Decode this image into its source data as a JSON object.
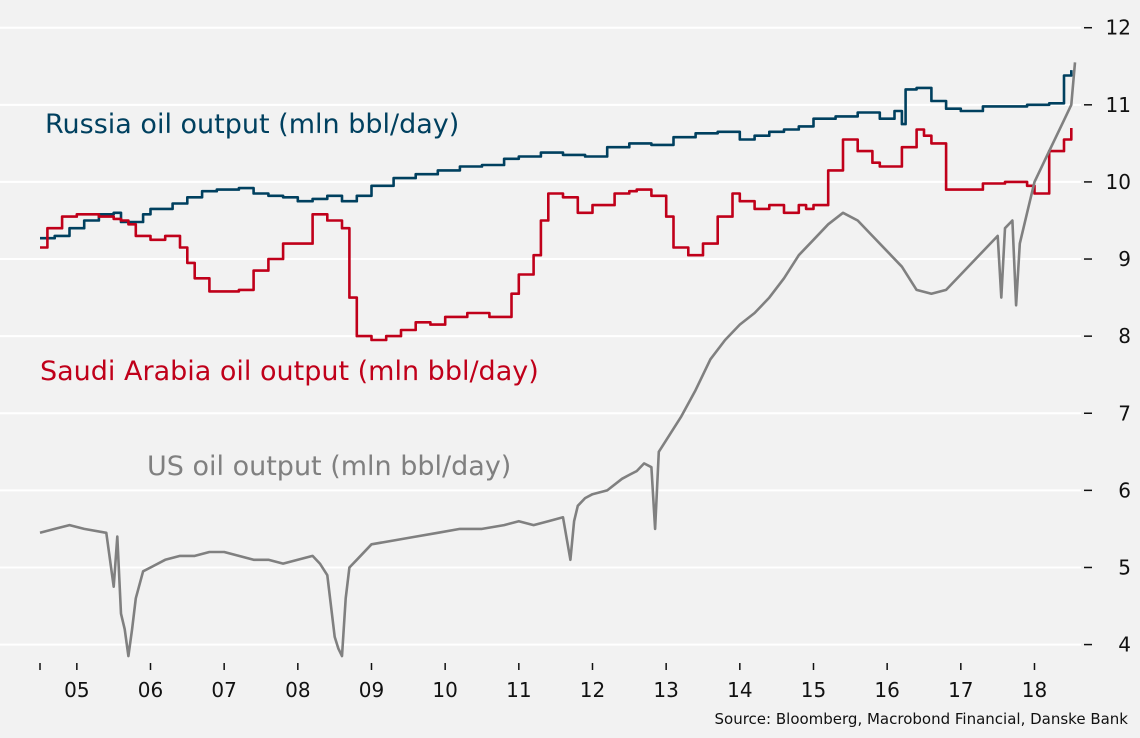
{
  "chart_data": {
    "type": "line",
    "x_ticks": [
      "05",
      "06",
      "07",
      "08",
      "09",
      "10",
      "11",
      "12",
      "13",
      "14",
      "15",
      "16",
      "17",
      "18"
    ],
    "y_ticks": [
      4,
      5,
      6,
      7,
      8,
      9,
      10,
      11,
      12
    ],
    "ylim": [
      3.8,
      12.1
    ],
    "xlim": [
      2004.5,
      2018.55
    ],
    "grid": true,
    "source": "Source: Bloomberg, Macrobond Financial, Danske Bank",
    "colors": {
      "russia": "#00405f",
      "saudi": "#c0001a",
      "us": "#808080"
    },
    "series": [
      {
        "name": "Russia oil output (mln bbl/day)",
        "color": "#00405f",
        "x": [
          2004.5,
          2004.7,
          2004.9,
          2005.1,
          2005.3,
          2005.5,
          2005.6,
          2005.9,
          2006.0,
          2006.3,
          2006.5,
          2006.7,
          2006.9,
          2007.2,
          2007.4,
          2007.6,
          2007.8,
          2008.0,
          2008.2,
          2008.4,
          2008.6,
          2008.8,
          2009.0,
          2009.3,
          2009.6,
          2009.9,
          2010.2,
          2010.5,
          2010.8,
          2011.0,
          2011.3,
          2011.6,
          2011.9,
          2012.2,
          2012.5,
          2012.8,
          2013.1,
          2013.4,
          2013.7,
          2014.0,
          2014.2,
          2014.4,
          2014.6,
          2014.8,
          2015.0,
          2015.3,
          2015.6,
          2015.9,
          2016.1,
          2016.2,
          2016.25,
          2016.4,
          2016.6,
          2016.8,
          2017.0,
          2017.3,
          2017.6,
          2017.9,
          2018.0,
          2018.2,
          2018.4,
          2018.5
        ],
        "values": [
          9.27,
          9.3,
          9.4,
          9.5,
          9.58,
          9.6,
          9.48,
          9.58,
          9.65,
          9.72,
          9.8,
          9.88,
          9.9,
          9.92,
          9.85,
          9.82,
          9.8,
          9.75,
          9.78,
          9.82,
          9.75,
          9.82,
          9.95,
          10.05,
          10.1,
          10.15,
          10.2,
          10.22,
          10.3,
          10.33,
          10.38,
          10.35,
          10.33,
          10.45,
          10.5,
          10.48,
          10.58,
          10.63,
          10.65,
          10.55,
          10.6,
          10.65,
          10.68,
          10.72,
          10.82,
          10.85,
          10.9,
          10.82,
          10.92,
          10.75,
          11.2,
          11.22,
          11.05,
          10.95,
          10.92,
          10.98,
          10.98,
          11.0,
          11.0,
          11.02,
          11.38,
          11.45
        ]
      },
      {
        "name": "Saudi Arabia oil output (mln bbl/day)",
        "color": "#c0001a",
        "x": [
          2004.5,
          2004.6,
          2004.8,
          2005.0,
          2005.3,
          2005.5,
          2005.6,
          2005.7,
          2005.8,
          2006.0,
          2006.2,
          2006.4,
          2006.5,
          2006.6,
          2006.8,
          2007.0,
          2007.2,
          2007.4,
          2007.6,
          2007.8,
          2008.0,
          2008.2,
          2008.4,
          2008.6,
          2008.7,
          2008.8,
          2009.0,
          2009.2,
          2009.4,
          2009.6,
          2009.8,
          2010.0,
          2010.3,
          2010.6,
          2010.8,
          2010.9,
          2011.0,
          2011.2,
          2011.3,
          2011.4,
          2011.6,
          2011.8,
          2012.0,
          2012.3,
          2012.5,
          2012.6,
          2012.8,
          2013.0,
          2013.1,
          2013.3,
          2013.5,
          2013.7,
          2013.9,
          2014.0,
          2014.2,
          2014.4,
          2014.6,
          2014.8,
          2014.9,
          2015.0,
          2015.2,
          2015.4,
          2015.6,
          2015.8,
          2015.9,
          2016.0,
          2016.2,
          2016.4,
          2016.5,
          2016.6,
          2016.8,
          2017.0,
          2017.3,
          2017.6,
          2017.9,
          2018.0,
          2018.2,
          2018.4,
          2018.5
        ],
        "values": [
          9.15,
          9.4,
          9.55,
          9.58,
          9.55,
          9.52,
          9.5,
          9.45,
          9.3,
          9.25,
          9.3,
          9.15,
          8.95,
          8.75,
          8.58,
          8.58,
          8.6,
          8.85,
          9.0,
          9.2,
          9.2,
          9.58,
          9.5,
          9.4,
          8.5,
          8.0,
          7.95,
          8.0,
          8.08,
          8.18,
          8.15,
          8.25,
          8.3,
          8.25,
          8.25,
          8.55,
          8.8,
          9.05,
          9.5,
          9.85,
          9.8,
          9.6,
          9.7,
          9.85,
          9.88,
          9.9,
          9.82,
          9.55,
          9.15,
          9.05,
          9.2,
          9.55,
          9.85,
          9.75,
          9.65,
          9.7,
          9.6,
          9.7,
          9.65,
          9.7,
          10.15,
          10.55,
          10.4,
          10.25,
          10.2,
          10.2,
          10.45,
          10.68,
          10.6,
          10.5,
          9.9,
          9.9,
          9.98,
          10.0,
          9.95,
          9.85,
          10.4,
          10.55,
          10.7
        ]
      },
      {
        "name": "US oil output (mln bbl/day)",
        "color": "#808080",
        "x": [
          2004.5,
          2004.7,
          2004.9,
          2005.1,
          2005.4,
          2005.5,
          2005.55,
          2005.6,
          2005.65,
          2005.7,
          2005.75,
          2005.8,
          2005.9,
          2006.0,
          2006.2,
          2006.4,
          2006.6,
          2006.8,
          2007.0,
          2007.2,
          2007.4,
          2007.6,
          2007.8,
          2008.0,
          2008.2,
          2008.3,
          2008.4,
          2008.5,
          2008.55,
          2008.6,
          2008.65,
          2008.7,
          2008.8,
          2009.0,
          2009.3,
          2009.6,
          2009.9,
          2010.2,
          2010.5,
          2010.8,
          2011.0,
          2011.2,
          2011.4,
          2011.6,
          2011.7,
          2011.75,
          2011.8,
          2011.9,
          2012.0,
          2012.2,
          2012.4,
          2012.5,
          2012.6,
          2012.7,
          2012.8,
          2012.85,
          2012.9,
          2013.0,
          2013.2,
          2013.4,
          2013.6,
          2013.8,
          2014.0,
          2014.2,
          2014.4,
          2014.6,
          2014.8,
          2015.0,
          2015.2,
          2015.4,
          2015.6,
          2015.8,
          2016.0,
          2016.2,
          2016.4,
          2016.6,
          2016.8,
          2017.0,
          2017.2,
          2017.4,
          2017.5,
          2017.55,
          2017.6,
          2017.7,
          2017.75,
          2017.8,
          2017.9,
          2018.0,
          2018.2,
          2018.4,
          2018.5,
          2018.55
        ],
        "values": [
          5.45,
          5.5,
          5.55,
          5.5,
          5.45,
          4.75,
          5.4,
          4.4,
          4.2,
          3.85,
          4.2,
          4.6,
          4.95,
          5.0,
          5.1,
          5.15,
          5.15,
          5.2,
          5.2,
          5.15,
          5.1,
          5.1,
          5.05,
          5.1,
          5.15,
          5.05,
          4.9,
          4.1,
          3.95,
          3.85,
          4.6,
          5.0,
          5.1,
          5.3,
          5.35,
          5.4,
          5.45,
          5.5,
          5.5,
          5.55,
          5.6,
          5.55,
          5.6,
          5.65,
          5.1,
          5.6,
          5.8,
          5.9,
          5.95,
          6.0,
          6.15,
          6.2,
          6.25,
          6.35,
          6.3,
          5.5,
          6.5,
          6.65,
          6.95,
          7.3,
          7.7,
          7.95,
          8.15,
          8.3,
          8.5,
          8.75,
          9.05,
          9.25,
          9.45,
          9.6,
          9.5,
          9.3,
          9.1,
          8.9,
          8.6,
          8.55,
          8.6,
          8.8,
          9.0,
          9.2,
          9.3,
          8.5,
          9.4,
          9.5,
          8.4,
          9.2,
          9.6,
          10.0,
          10.4,
          10.8,
          11.0,
          11.55
        ]
      }
    ]
  },
  "labels": {
    "russia": "Russia oil output (mln bbl/day)",
    "saudi": "Saudi Arabia oil output (mln bbl/day)",
    "us": "US oil output (mln bbl/day)"
  }
}
